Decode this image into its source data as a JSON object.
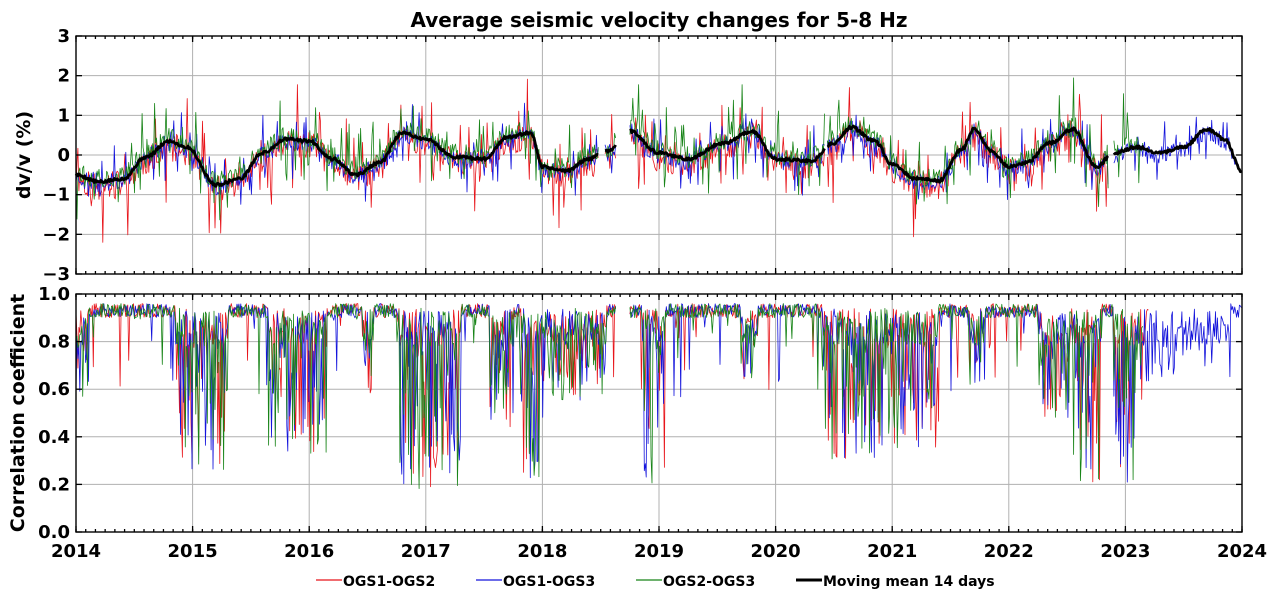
{
  "chart_data": [
    {
      "type": "line",
      "title": "Average seismic velocity changes for 5-8 Hz",
      "xlabel": "",
      "ylabel": "dv/v (%)",
      "xlim": [
        2014,
        2024
      ],
      "ylim": [
        -3,
        3
      ],
      "x_ticks": [
        "2014",
        "2015",
        "2016",
        "2017",
        "2018",
        "2019",
        "2020",
        "2021",
        "2022",
        "2023",
        "2024"
      ],
      "y_ticks": [
        "−3",
        "−2",
        "−1",
        "0",
        "1",
        "2",
        "3"
      ],
      "grid": true,
      "mean_anchors": [
        [
          2014.0,
          -0.5
        ],
        [
          2014.2,
          -0.68
        ],
        [
          2014.4,
          -0.6
        ],
        [
          2014.6,
          -0.05
        ],
        [
          2014.8,
          0.35
        ],
        [
          2014.95,
          0.2
        ],
        [
          2015.2,
          -0.75
        ],
        [
          2015.4,
          -0.6
        ],
        [
          2015.6,
          0.05
        ],
        [
          2015.8,
          0.4
        ],
        [
          2016.0,
          0.35
        ],
        [
          2016.2,
          -0.1
        ],
        [
          2016.4,
          -0.5
        ],
        [
          2016.6,
          -0.2
        ],
        [
          2016.8,
          0.55
        ],
        [
          2017.0,
          0.4
        ],
        [
          2017.25,
          -0.05
        ],
        [
          2017.5,
          -0.1
        ],
        [
          2017.7,
          0.45
        ],
        [
          2017.9,
          0.55
        ],
        [
          2018.0,
          -0.3
        ],
        [
          2018.2,
          -0.4
        ],
        [
          2018.4,
          -0.1
        ],
        [
          2018.55,
          0.1
        ],
        [
          2018.75,
          0.6
        ],
        [
          2019.0,
          0.05
        ],
        [
          2019.25,
          -0.1
        ],
        [
          2019.55,
          0.3
        ],
        [
          2019.8,
          0.6
        ],
        [
          2020.0,
          -0.1
        ],
        [
          2020.3,
          -0.15
        ],
        [
          2020.5,
          0.3
        ],
        [
          2020.65,
          0.7
        ],
        [
          2020.85,
          0.35
        ],
        [
          2021.0,
          -0.25
        ],
        [
          2021.2,
          -0.6
        ],
        [
          2021.4,
          -0.65
        ],
        [
          2021.6,
          0.15
        ],
        [
          2021.7,
          0.65
        ],
        [
          2021.85,
          0.1
        ],
        [
          2022.0,
          -0.3
        ],
        [
          2022.15,
          -0.2
        ],
        [
          2022.35,
          0.3
        ],
        [
          2022.55,
          0.65
        ],
        [
          2022.75,
          -0.3
        ],
        [
          2022.9,
          0.05
        ],
        [
          2023.1,
          0.2
        ],
        [
          2023.3,
          0.05
        ],
        [
          2023.5,
          0.2
        ],
        [
          2023.7,
          0.65
        ],
        [
          2023.85,
          0.4
        ],
        [
          2024.0,
          -0.4
        ]
      ],
      "gaps": [
        [
          2018.48,
          2018.53
        ],
        [
          2018.63,
          2018.75
        ],
        [
          2020.42,
          2020.44
        ],
        [
          2022.86,
          2022.9
        ]
      ],
      "series": [
        {
          "name": "OGS1-OGS2",
          "color": "#e8151b",
          "range": [
            2014.0,
            2022.85
          ],
          "offset": -0.12,
          "noise": 0.35,
          "spike": 0.9,
          "seed": 11
        },
        {
          "name": "OGS1-OGS3",
          "color": "#1414dc",
          "range": [
            2014.0,
            2023.95
          ],
          "offset": -0.05,
          "noise": 0.22,
          "spike": 0.6,
          "seed": 23
        },
        {
          "name": "OGS2-OGS3",
          "color": "#188418",
          "range": [
            2014.0,
            2023.15
          ],
          "offset": 0.08,
          "noise": 0.25,
          "spike": 0.8,
          "seed": 37
        },
        {
          "name": "Moving mean 14 days",
          "color": "#000000",
          "range": [
            2014.0,
            2024.0
          ],
          "offset": 0,
          "noise": 0.04,
          "spike": 0,
          "seed": 5
        }
      ]
    },
    {
      "type": "line",
      "title": "",
      "xlabel": "",
      "ylabel": "Correlation coefficient",
      "xlim": [
        2014,
        2024
      ],
      "ylim": [
        0.0,
        1.0
      ],
      "x_ticks": [
        "2014",
        "2015",
        "2016",
        "2017",
        "2018",
        "2019",
        "2020",
        "2021",
        "2022",
        "2023",
        "2024"
      ],
      "y_ticks": [
        "0.0",
        "0.2",
        "0.4",
        "0.6",
        "0.8",
        "1.0"
      ],
      "grid": true,
      "base_level": 0.93,
      "dip_windows": [
        [
          2014.0,
          2014.1,
          0.55
        ],
        [
          2014.85,
          2015.3,
          0.25
        ],
        [
          2015.65,
          2016.15,
          0.32
        ],
        [
          2016.45,
          2016.55,
          0.5
        ],
        [
          2016.75,
          2017.3,
          0.18
        ],
        [
          2017.55,
          2017.75,
          0.4
        ],
        [
          2017.8,
          2018.05,
          0.22
        ],
        [
          2018.05,
          2018.55,
          0.55
        ],
        [
          2018.85,
          2019.05,
          0.2
        ],
        [
          2019.7,
          2019.85,
          0.62
        ],
        [
          2020.4,
          2020.85,
          0.3
        ],
        [
          2020.85,
          2021.4,
          0.35
        ],
        [
          2021.65,
          2021.8,
          0.62
        ],
        [
          2022.25,
          2022.55,
          0.45
        ],
        [
          2022.55,
          2022.8,
          0.2
        ],
        [
          2022.9,
          2023.15,
          0.2
        ],
        [
          2023.15,
          2023.9,
          0.62
        ]
      ],
      "series": [
        {
          "name": "OGS1-OGS2",
          "color": "#e8151b",
          "range": [
            2014.0,
            2023.2
          ],
          "seed": 41
        },
        {
          "name": "OGS1-OGS3",
          "color": "#1414dc",
          "range": [
            2014.0,
            2024.0
          ],
          "seed": 53
        },
        {
          "name": "OGS2-OGS3",
          "color": "#188418",
          "range": [
            2014.0,
            2023.15
          ],
          "seed": 67
        }
      ]
    }
  ],
  "legend": {
    "placement": "bottom-center",
    "entries": [
      {
        "label": "OGS1-OGS2",
        "color": "#e8151b",
        "bold_line": false
      },
      {
        "label": "OGS1-OGS3",
        "color": "#1414dc",
        "bold_line": false
      },
      {
        "label": "OGS2-OGS3",
        "color": "#188418",
        "bold_line": false
      },
      {
        "label": "Moving mean 14 days",
        "color": "#000000",
        "bold_line": true
      }
    ]
  }
}
